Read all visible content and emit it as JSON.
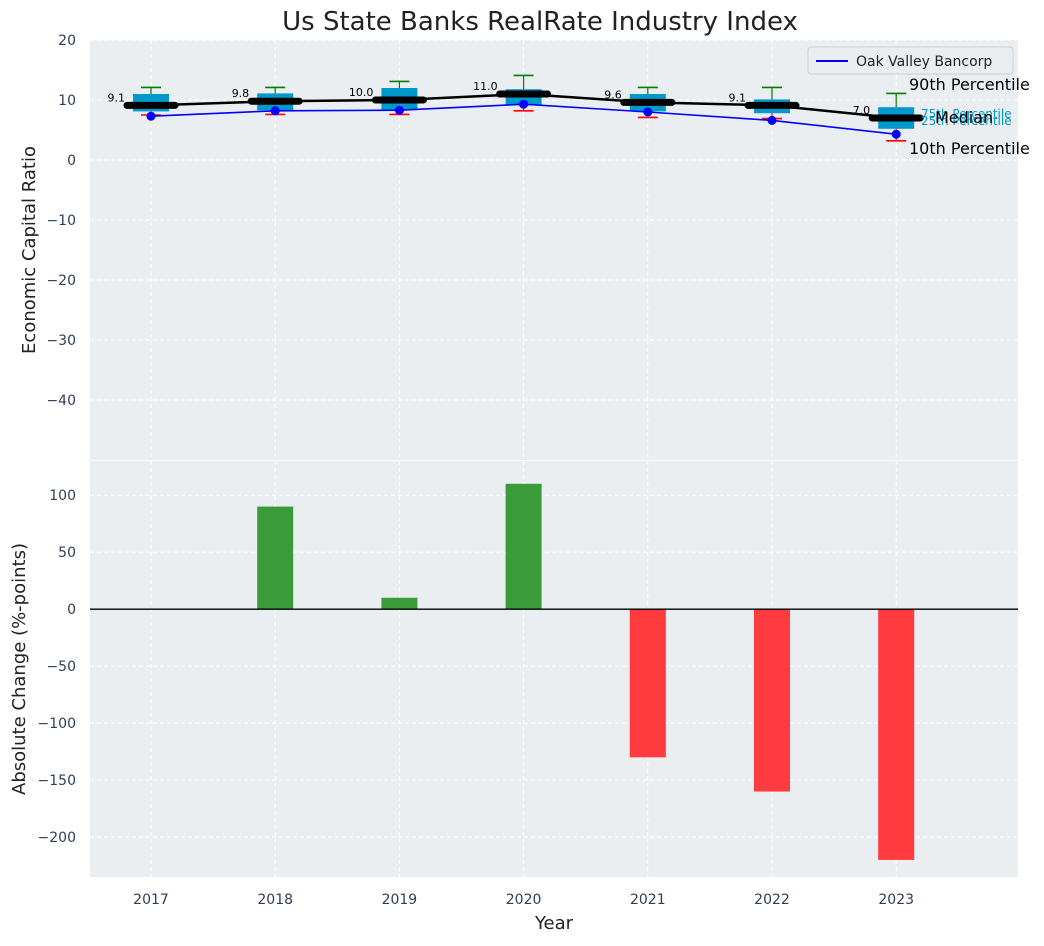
{
  "chart_data": [
    {
      "type": "box-line",
      "title": "Us State Banks RealRate Industry Index",
      "xlabel": "",
      "ylabel": "Economic Capital Ratio",
      "ylim": [
        -50,
        20
      ],
      "yticks": [
        20,
        10,
        0,
        -10,
        -20,
        -30,
        -40
      ],
      "grid": true,
      "legend": {
        "position": "top-right",
        "entries": [
          {
            "label": "Oak Valley Bancorp",
            "color": "#0000ff"
          }
        ]
      },
      "categories": [
        "2017",
        "2018",
        "2019",
        "2020",
        "2021",
        "2022",
        "2023"
      ],
      "percentiles": {
        "p10": [
          7.5,
          7.6,
          7.6,
          8.2,
          7.1,
          6.9,
          3.2
        ],
        "p25": [
          8.1,
          8.3,
          8.4,
          9.1,
          8.1,
          7.8,
          5.2
        ],
        "median": [
          9.1,
          9.8,
          10.0,
          11.0,
          9.6,
          9.1,
          7.0
        ],
        "p75": [
          11.0,
          11.1,
          12.0,
          11.8,
          11.0,
          10.1,
          8.8
        ],
        "p90": [
          12.1,
          12.1,
          13.1,
          14.1,
          12.1,
          12.1,
          11.1
        ]
      },
      "median_labels": [
        "9.1",
        "9.8",
        "10.0",
        "11.0",
        "9.6",
        "9.1",
        "7.0"
      ],
      "series": [
        {
          "name": "Oak Valley Bancorp",
          "values": [
            7.3,
            8.2,
            8.3,
            9.3,
            8.0,
            6.6,
            4.3
          ]
        }
      ],
      "annotations": {
        "p90": "90th Percentile",
        "p75": "75th Percentile",
        "median": "Median",
        "p25": "25th Percentile",
        "p10": "10th Percentile"
      },
      "colors": {
        "box": "#0099cc",
        "whisker_top": "#008000",
        "whisker_bottom": "#ff0000",
        "median": "#000000",
        "series": "#0000ff"
      }
    },
    {
      "type": "bar",
      "title": "",
      "xlabel": "Year",
      "ylabel": "Absolute Change (%-points)",
      "ylim": [
        -235,
        130
      ],
      "yticks": [
        100,
        50,
        0,
        -50,
        -100,
        -150,
        -200
      ],
      "grid": true,
      "categories": [
        "2017",
        "2018",
        "2019",
        "2020",
        "2021",
        "2022",
        "2023"
      ],
      "values": [
        0,
        90,
        10,
        110,
        -130,
        -160,
        -220
      ],
      "colors": {
        "positive": "#3a9b3a",
        "negative": "#ff3b3f",
        "zero_line": "#000000"
      }
    }
  ]
}
